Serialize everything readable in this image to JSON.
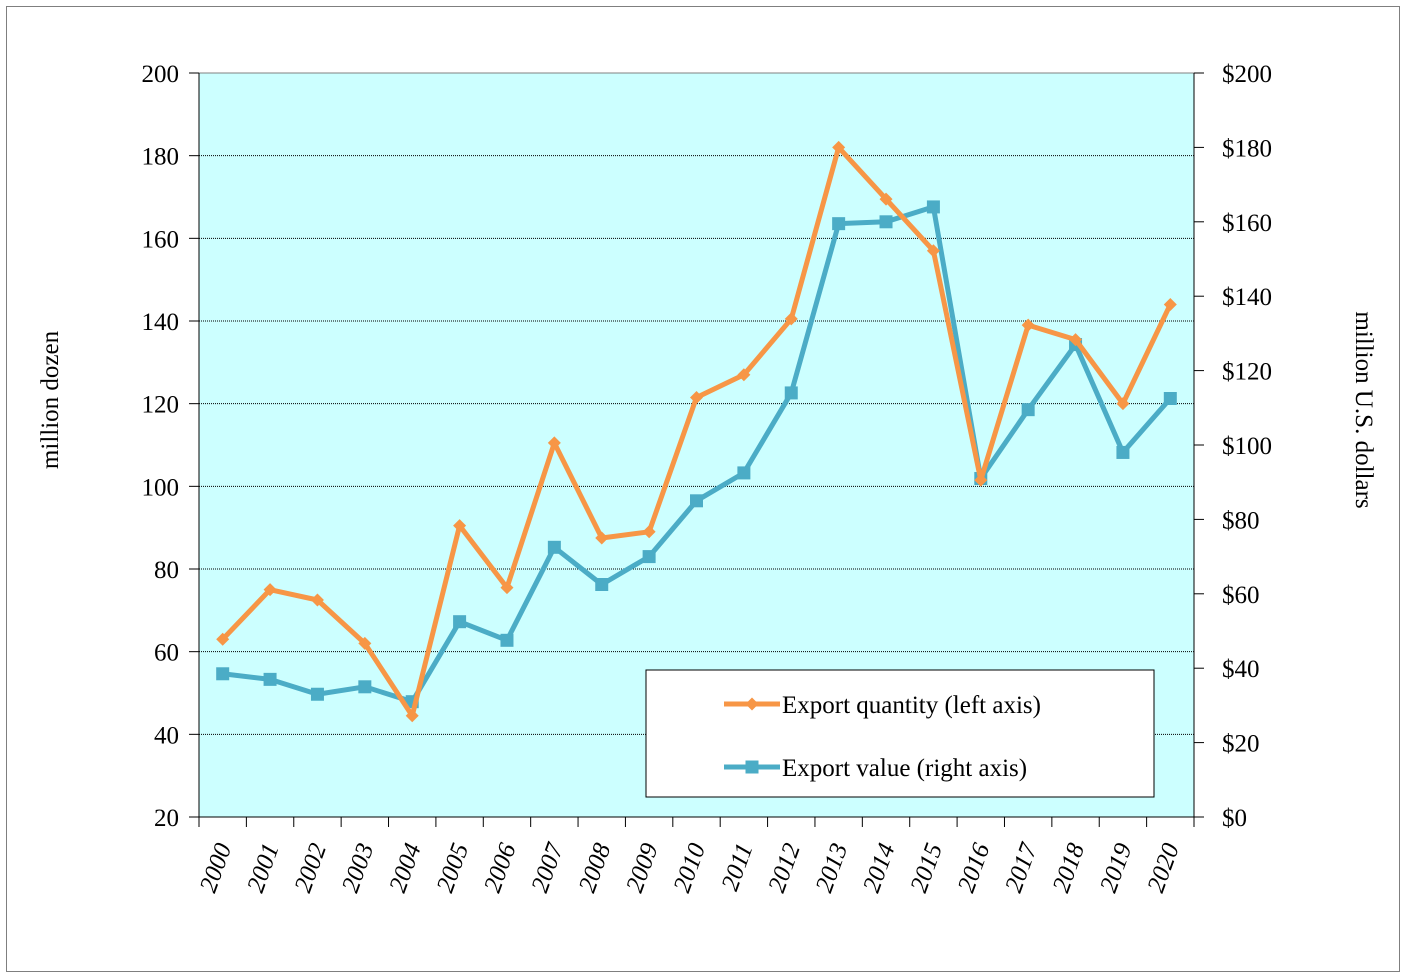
{
  "chart_data": {
    "type": "line",
    "x": [
      "2000",
      "2001",
      "2002",
      "2003",
      "2004",
      "2005",
      "2006",
      "2007",
      "2008",
      "2009",
      "2010",
      "2011",
      "2012",
      "2013",
      "2014",
      "2015",
      "2016",
      "2017",
      "2018",
      "2019",
      "2020"
    ],
    "y_left_label": "million dozen",
    "y_right_label": "million U.S. dollars",
    "y_left_lim": [
      20,
      200
    ],
    "y_right_lim": [
      0,
      200
    ],
    "y_left_ticks": [
      "20",
      "40",
      "60",
      "80",
      "100",
      "120",
      "140",
      "160",
      "180",
      "200"
    ],
    "y_right_ticks": [
      "$0",
      "$20",
      "$40",
      "$60",
      "$80",
      "$100",
      "$120",
      "$140",
      "$160",
      "$180",
      "$200"
    ],
    "grid": true,
    "plot_background": "#ccffff",
    "legend_position": "bottom-right",
    "series": [
      {
        "name": "Export quantity (left axis)",
        "axis": "left",
        "color": "#f79646",
        "marker": "diamond",
        "values": [
          63,
          75,
          72.5,
          62,
          44.5,
          90.5,
          75.5,
          110.5,
          87.5,
          89,
          121.5,
          127,
          140.5,
          182,
          169.5,
          157,
          101.5,
          139,
          135.5,
          120,
          144
        ]
      },
      {
        "name": "Export value (right axis)",
        "axis": "right",
        "color": "#4bacc6",
        "marker": "square",
        "values": [
          38.5,
          37,
          33,
          35,
          31,
          52.5,
          47.5,
          72.5,
          62.5,
          70,
          85,
          92.5,
          114,
          159.5,
          160,
          164,
          91,
          109.5,
          127,
          98,
          112.5
        ]
      }
    ]
  }
}
